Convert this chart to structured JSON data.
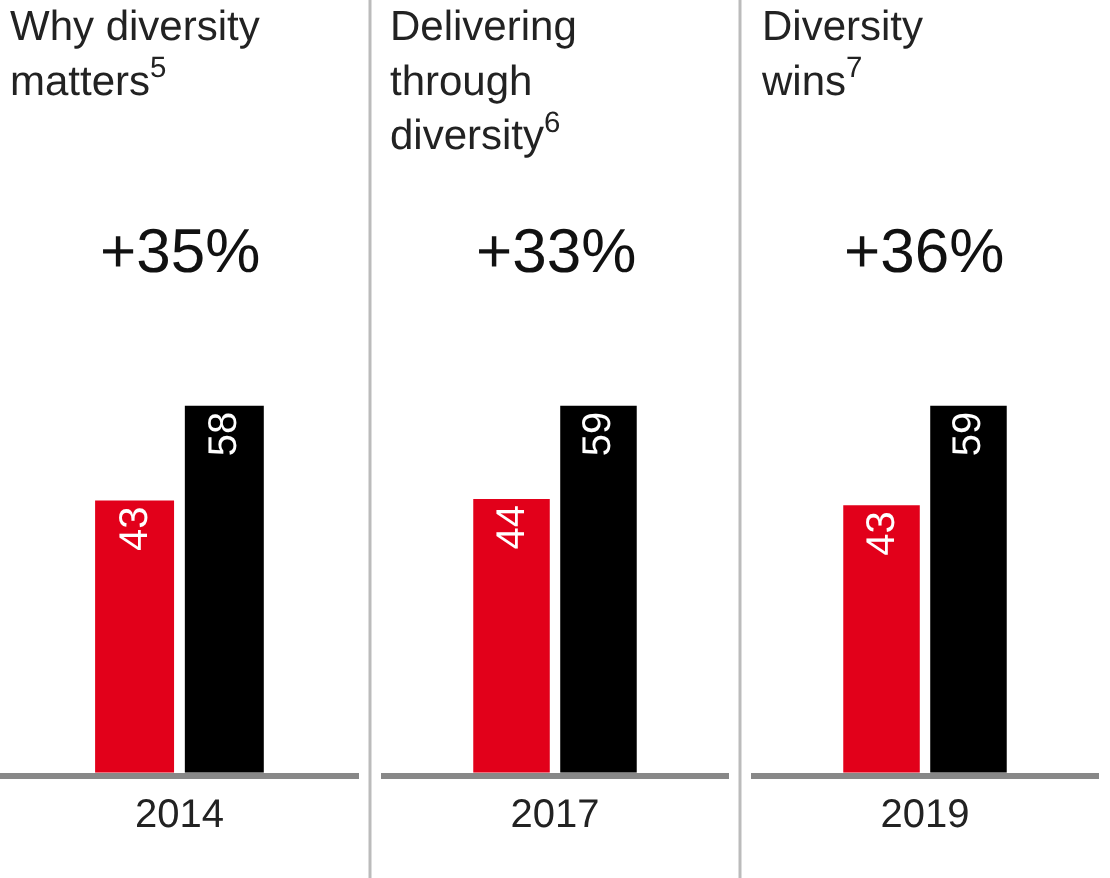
{
  "chart_data": [
    {
      "type": "bar",
      "title": "Why diversity matters$^{5}$",
      "categories": [
        "2014"
      ],
      "series": [
        {
          "color": "#e2001a",
          "values": [
            43
          ]
        },
        {
          "color": "#000000",
          "values": [
            58
          ]
        }
      ],
      "data_labels": true,
      "annotations": [
        "+35%"
      ],
      "tick_labels": "x"
    },
    {
      "type": "bar",
      "title": "Delivering through diversity$^{6}$",
      "categories": [
        "2017"
      ],
      "series": [
        {
          "color": "#e2001a",
          "values": [
            44
          ]
        },
        {
          "color": "#000000",
          "values": [
            59
          ]
        }
      ],
      "data_labels": true,
      "annotations": [
        "+33%"
      ],
      "tick_labels": "x"
    },
    {
      "type": "bar",
      "title": "Diversity wins$^{7}$",
      "categories": [
        "2019"
      ],
      "series": [
        {
          "color": "#e2001a",
          "values": [
            43
          ]
        },
        {
          "color": "#000000",
          "values": [
            59
          ]
        }
      ],
      "data_labels": true,
      "annotations": [
        "+36%"
      ],
      "tick_labels": "x"
    }
  ]
}
